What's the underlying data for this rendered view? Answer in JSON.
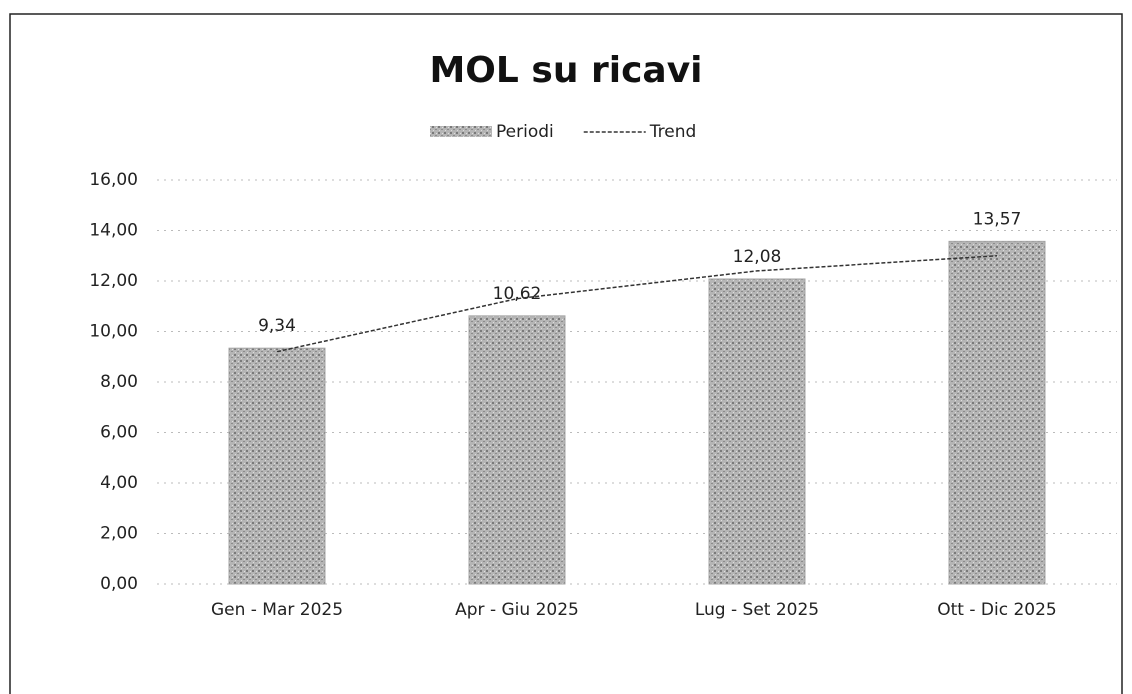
{
  "chart_data": {
    "type": "bar",
    "title": "MOL su ricavi",
    "categories": [
      "Gen - Mar 2025",
      "Apr - Giu 2025",
      "Lug - Set 2025",
      "Ott - Dic 2025"
    ],
    "series": [
      {
        "name": "Periodi",
        "type": "bar",
        "color": "#a6a6a6",
        "values": [
          9.34,
          10.62,
          12.08,
          13.57
        ],
        "value_labels": [
          "9,34",
          "10,62",
          "12,08",
          "13,57"
        ]
      },
      {
        "name": "Trend",
        "type": "line",
        "color": "#333333",
        "values": [
          9.2,
          11.3,
          12.4,
          13.0
        ]
      }
    ],
    "ylim": [
      0,
      16
    ],
    "yticks": [
      {
        "value": 0,
        "label": "0,00"
      },
      {
        "value": 2,
        "label": "2,00"
      },
      {
        "value": 4,
        "label": "4,00"
      },
      {
        "value": 6,
        "label": "6,00"
      },
      {
        "value": 8,
        "label": "8,00"
      },
      {
        "value": 10,
        "label": "10,00"
      },
      {
        "value": 12,
        "label": "12,00"
      },
      {
        "value": 14,
        "label": "14,00"
      },
      {
        "value": 16,
        "label": "16,00"
      }
    ],
    "grid": true,
    "legend": "top"
  }
}
